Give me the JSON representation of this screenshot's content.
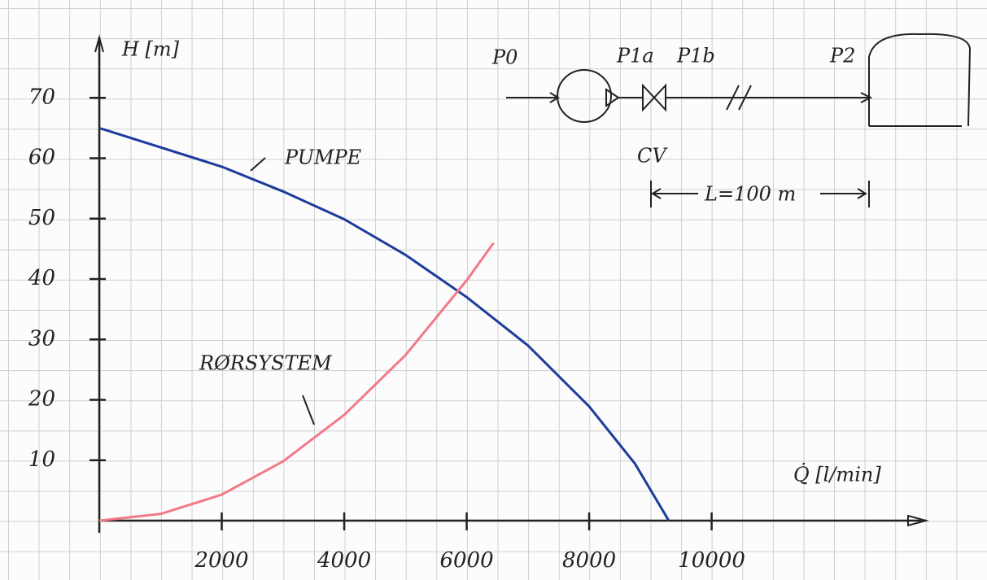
{
  "chart_data": {
    "type": "line",
    "y_label": "H [m]",
    "x_label": "Q̇ [l/min]",
    "xlim": [
      0,
      13500
    ],
    "ylim": [
      0,
      80
    ],
    "xticks": [
      2000,
      4000,
      6000,
      8000,
      10000
    ],
    "yticks": [
      10,
      20,
      30,
      40,
      50,
      60,
      70
    ],
    "series": [
      {
        "name": "PUMPE",
        "color": "#1c3c9c",
        "x": [
          0,
          2000,
          3000,
          4000,
          5000,
          6000,
          7000,
          8000,
          8750,
          9300
        ],
        "values": [
          65,
          58.6,
          54.5,
          49.9,
          44,
          37,
          29,
          18.9,
          9.4,
          0
        ]
      },
      {
        "name": "RØRSYSTEM",
        "color": "#f27a88",
        "x": [
          0,
          1000,
          2000,
          3000,
          4000,
          5000,
          6000,
          6440
        ],
        "values": [
          0,
          1.1,
          4.3,
          9.8,
          17.5,
          27.4,
          39.8,
          46
        ]
      }
    ]
  },
  "diagram": {
    "labels": [
      "P0",
      "P1a",
      "P1b",
      "P2",
      "CV",
      "L=100 m"
    ]
  }
}
